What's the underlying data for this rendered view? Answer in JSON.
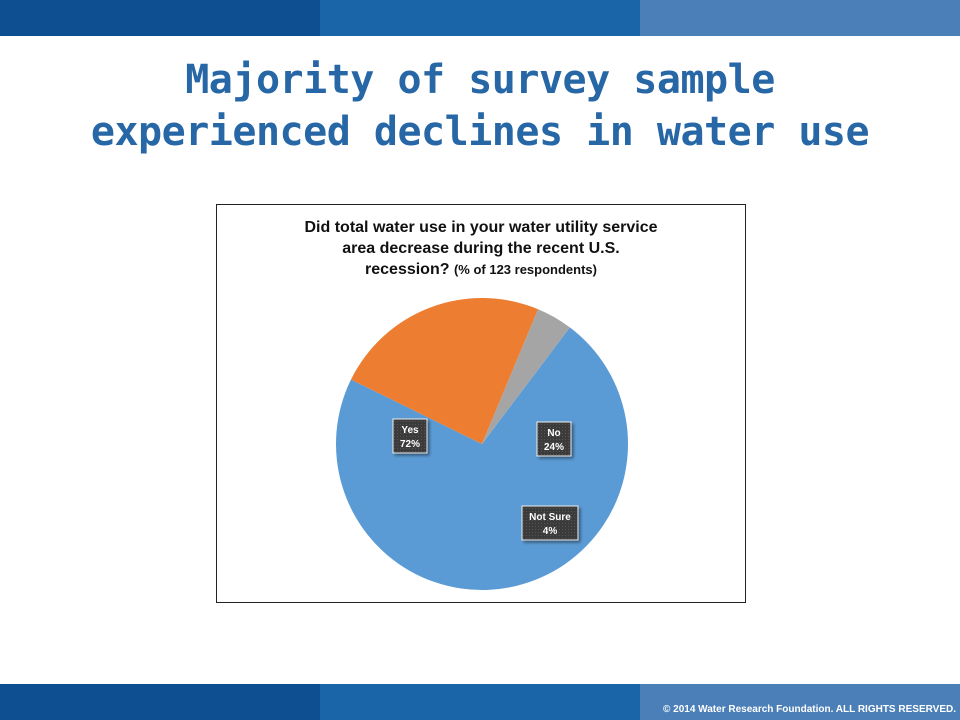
{
  "slide": {
    "title_line1": "Majority of survey sample",
    "title_line2": "experienced declines in water use",
    "copyright": "© 2014 Water Research Foundation. ALL RIGHTS RESERVED."
  },
  "colors": {
    "bar_dark": "#0d4f91",
    "bar_mid": "#1a65a8",
    "bar_light": "#4b7fb7",
    "title": "#2767a6"
  },
  "chart_data": {
    "type": "pie",
    "title_line1": "Did total water use in your water utility service",
    "title_line2": "area decrease during the recent U.S.",
    "title_line3_main": "recession?",
    "title_line3_small": "(% of 123 respondents)",
    "slices": [
      {
        "label": "Yes",
        "value": 72,
        "value_label": "72%",
        "color": "#5b9bd5"
      },
      {
        "label": "No",
        "value": 24,
        "value_label": "24%",
        "color": "#ed7d31"
      },
      {
        "label": "Not Sure",
        "value": 4,
        "value_label": "4%",
        "color": "#a5a5a5"
      }
    ],
    "start_angle_deg": 37,
    "direction": "clockwise"
  }
}
